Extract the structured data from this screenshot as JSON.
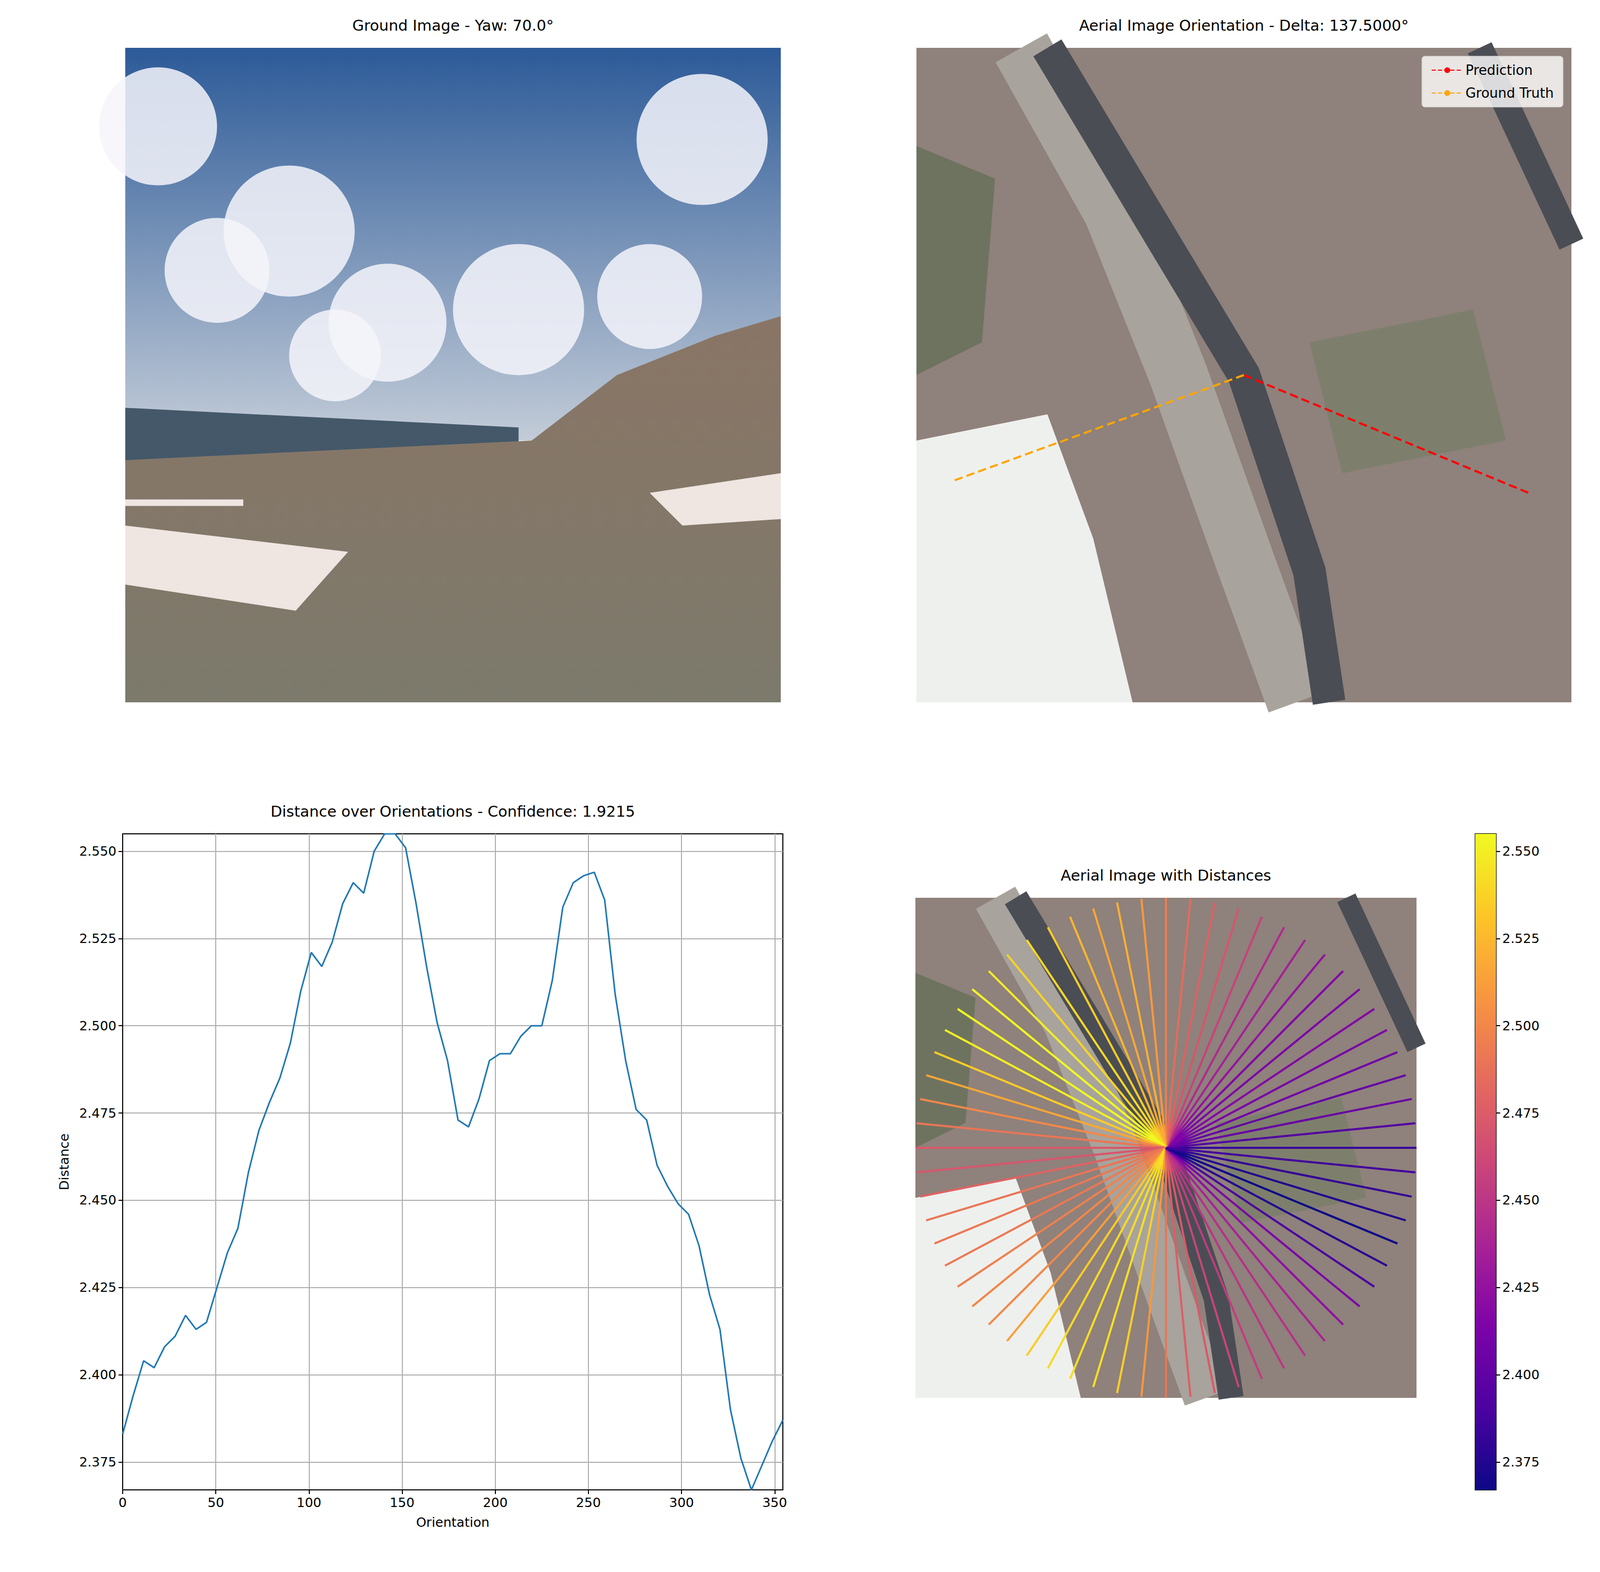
{
  "chart_data": [
    {
      "type": "image",
      "title": "Ground Image - Yaw: 70.0°"
    },
    {
      "type": "orientation",
      "title": "Aerial Image Orientation - Delta: 137.5000°",
      "legend": "upper right",
      "series": [
        {
          "name": "Prediction",
          "color": "#ff0000",
          "line_style": "dashed",
          "values": [
            337.5
          ]
        },
        {
          "name": "Ground Truth",
          "color": "#ffa500",
          "line_style": "dashed",
          "values": [
            200
          ]
        }
      ]
    },
    {
      "type": "line",
      "title": "Distance over Orientations - Confidence: 1.9215",
      "xlabel": "Orientation",
      "ylabel": "Distance",
      "color": "#1f77b4",
      "grid": true,
      "x": [
        0,
        5.625,
        11.25,
        16.875,
        22.5,
        28.125,
        33.75,
        39.375,
        45,
        50.625,
        56.25,
        61.875,
        67.5,
        73.125,
        78.75,
        84.375,
        90,
        95.625,
        101.25,
        106.875,
        112.5,
        118.125,
        123.75,
        129.375,
        135,
        140.625,
        146.25,
        151.875,
        157.5,
        163.125,
        168.75,
        174.375,
        180,
        185.625,
        191.25,
        196.875,
        202.5,
        208.125,
        213.75,
        219.375,
        225,
        230.625,
        236.25,
        241.875,
        247.5,
        253.125,
        258.75,
        264.375,
        270,
        275.625,
        281.25,
        286.875,
        292.5,
        298.125,
        303.75,
        309.375,
        315,
        320.625,
        326.25,
        331.875,
        337.5,
        343.125,
        348.75,
        354.375
      ],
      "values": [
        2.383,
        2.394,
        2.404,
        2.402,
        2.408,
        2.411,
        2.417,
        2.413,
        2.415,
        2.425,
        2.435,
        2.442,
        2.458,
        2.47,
        2.478,
        2.485,
        2.495,
        2.51,
        2.521,
        2.517,
        2.524,
        2.535,
        2.541,
        2.538,
        2.55,
        2.555,
        2.555,
        2.551,
        2.535,
        2.517,
        2.501,
        2.49,
        2.473,
        2.471,
        2.479,
        2.49,
        2.492,
        2.492,
        2.497,
        2.5,
        2.5,
        2.513,
        2.534,
        2.541,
        2.543,
        2.544,
        2.536,
        2.509,
        2.49,
        2.476,
        2.473,
        2.46,
        2.454,
        2.449,
        2.446,
        2.437,
        2.423,
        2.413,
        2.39,
        2.376,
        2.367,
        2.374,
        2.381,
        2.387
      ],
      "xlim": [
        0,
        354.375
      ],
      "ylim": [
        2.367,
        2.555
      ],
      "xticks": [
        0,
        50,
        100,
        150,
        200,
        250,
        300,
        350
      ],
      "yticks": [
        {
          "value": 2.375,
          "label": "2.375"
        },
        {
          "value": 2.4,
          "label": "2.400"
        },
        {
          "value": 2.425,
          "label": "2.425"
        },
        {
          "value": 2.45,
          "label": "2.450"
        },
        {
          "value": 2.475,
          "label": "2.475"
        },
        {
          "value": 2.5,
          "label": "2.500"
        },
        {
          "value": 2.525,
          "label": "2.525"
        },
        {
          "value": 2.55,
          "label": "2.550"
        }
      ]
    },
    {
      "type": "radial",
      "title": "Aerial Image with Distances",
      "x": [
        0,
        5.625,
        11.25,
        16.875,
        22.5,
        28.125,
        33.75,
        39.375,
        45,
        50.625,
        56.25,
        61.875,
        67.5,
        73.125,
        78.75,
        84.375,
        90,
        95.625,
        101.25,
        106.875,
        112.5,
        118.125,
        123.75,
        129.375,
        135,
        140.625,
        146.25,
        151.875,
        157.5,
        163.125,
        168.75,
        174.375,
        180,
        185.625,
        191.25,
        196.875,
        202.5,
        208.125,
        213.75,
        219.375,
        225,
        230.625,
        236.25,
        241.875,
        247.5,
        253.125,
        258.75,
        264.375,
        270,
        275.625,
        281.25,
        286.875,
        292.5,
        298.125,
        303.75,
        309.375,
        315,
        320.625,
        326.25,
        331.875,
        337.5,
        343.125,
        348.75,
        354.375
      ],
      "values": [
        2.383,
        2.394,
        2.404,
        2.402,
        2.408,
        2.411,
        2.417,
        2.413,
        2.415,
        2.425,
        2.435,
        2.442,
        2.458,
        2.47,
        2.478,
        2.485,
        2.495,
        2.51,
        2.521,
        2.517,
        2.524,
        2.535,
        2.541,
        2.538,
        2.55,
        2.555,
        2.555,
        2.551,
        2.535,
        2.517,
        2.501,
        2.49,
        2.473,
        2.471,
        2.479,
        2.49,
        2.492,
        2.492,
        2.497,
        2.5,
        2.5,
        2.513,
        2.534,
        2.541,
        2.543,
        2.544,
        2.536,
        2.509,
        2.49,
        2.476,
        2.473,
        2.46,
        2.454,
        2.449,
        2.446,
        2.437,
        2.423,
        2.413,
        2.39,
        2.376,
        2.367,
        2.374,
        2.381,
        2.387
      ],
      "colorbar_range": [
        2.367,
        2.555
      ],
      "colorbar_ticks": [
        {
          "value": 2.375,
          "label": "2.375"
        },
        {
          "value": 2.4,
          "label": "2.400"
        },
        {
          "value": 2.425,
          "label": "2.425"
        },
        {
          "value": 2.45,
          "label": "2.450"
        },
        {
          "value": 2.475,
          "label": "2.475"
        },
        {
          "value": 2.5,
          "label": "2.500"
        },
        {
          "value": 2.525,
          "label": "2.525"
        },
        {
          "value": 2.55,
          "label": "2.550"
        }
      ]
    }
  ]
}
